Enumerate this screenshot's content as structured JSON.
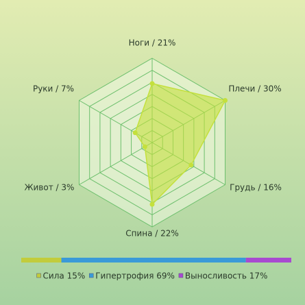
{
  "chart_data": [
    {
      "type": "radar",
      "categories": [
        "Ноги / 21%",
        "Плечи / 30%",
        "Грудь / 16%",
        "Спина / 22%",
        "Живот / 3%",
        "Руки / 7%"
      ],
      "values": [
        21,
        30,
        16,
        22,
        3,
        7
      ],
      "ylim": [
        0,
        30
      ],
      "grid_rings": 7,
      "color": "#c4e03c"
    },
    {
      "type": "stacked_bar",
      "series": [
        {
          "name": "Сила 15%",
          "color": "#c2cc3c",
          "values": [
            15
          ]
        },
        {
          "name": "Гипертрофия 69%",
          "color": "#3a9ad8",
          "values": [
            69
          ]
        },
        {
          "name": "Выносливость 17%",
          "color": "#a84ad0",
          "values": [
            17
          ]
        }
      ]
    }
  ]
}
